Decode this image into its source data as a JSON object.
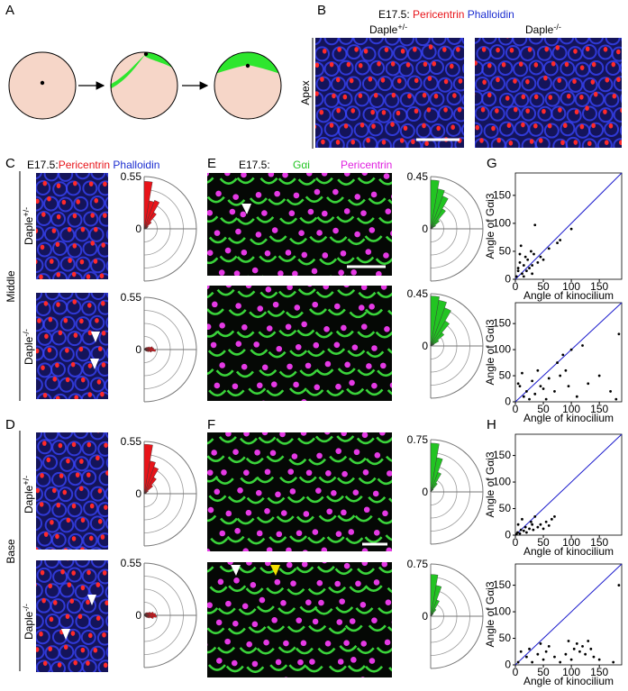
{
  "letters": [
    "A",
    "B",
    "C",
    "D",
    "E",
    "F",
    "G",
    "H"
  ],
  "header_B": {
    "stage": "E17.5:",
    "stain1": "Pericentrin",
    "stain2": "Phalloidin"
  },
  "header_C": {
    "stage": "E17.5:",
    "stain1": "Pericentrin",
    "stain2": "Phalloidin"
  },
  "header_E": {
    "stage": "E17.5:",
    "stain1": "Gαi",
    "stain2": "Pericentrin"
  },
  "columns_B": [
    {
      "gene": "Daple",
      "sup": "+/-"
    },
    {
      "gene": "Daple",
      "sup": "-/-"
    }
  ],
  "rows_CD": [
    {
      "gene": "Daple",
      "sup": "+/-"
    },
    {
      "gene": "Daple",
      "sup": "-/-"
    },
    {
      "gene": "Daple",
      "sup": "+/-"
    },
    {
      "gene": "Daple",
      "sup": "-/-"
    }
  ],
  "regions": [
    "Apex",
    "Middle",
    "Base"
  ],
  "rose_bins": [
    -90,
    -80,
    -70,
    -60,
    -50,
    -40,
    -30,
    -20,
    -10,
    0,
    10,
    20,
    30,
    40,
    50,
    60,
    70,
    80,
    90
  ],
  "rose_plots": [
    {
      "color": "#e8141a",
      "rticks": [
        0,
        0.55
      ],
      "values": [
        0,
        0,
        0,
        0,
        0,
        0,
        0,
        0,
        0,
        0.02,
        0.03,
        0.04,
        0.05,
        0.1,
        0.2,
        0.32,
        0.3,
        0.5
      ]
    },
    {
      "color": "#e8141a",
      "rticks": [
        0,
        0.55
      ],
      "values": [
        0,
        0,
        0,
        0,
        0,
        0.03,
        0.05,
        0.08,
        0.12,
        0.1,
        0.09,
        0.06,
        0.04,
        0.03,
        0.02,
        0,
        0,
        0
      ]
    },
    {
      "color": "#e8141a",
      "rticks": [
        0,
        0.55
      ],
      "values": [
        0,
        0,
        0,
        0,
        0,
        0,
        0,
        0,
        0,
        0,
        0.02,
        0.03,
        0.05,
        0.12,
        0.2,
        0.3,
        0.35,
        0.52
      ]
    },
    {
      "color": "#e8141a",
      "rticks": [
        0,
        0.55
      ],
      "values": [
        0,
        0,
        0,
        0,
        0.02,
        0.04,
        0.06,
        0.1,
        0.13,
        0.12,
        0.1,
        0.07,
        0.05,
        0.04,
        0.03,
        0.02,
        0,
        0
      ]
    },
    {
      "color": "#22c422",
      "rticks": [
        0,
        0.45
      ],
      "values": [
        0,
        0,
        0,
        0,
        0,
        0,
        0,
        0,
        0,
        0,
        0,
        0.02,
        0.05,
        0.1,
        0.2,
        0.3,
        0.35,
        0.42
      ]
    },
    {
      "color": "#22c422",
      "rticks": [
        0,
        0.45
      ],
      "values": [
        0,
        0,
        0,
        0,
        0,
        0,
        0,
        0,
        0,
        0,
        0,
        0.03,
        0.08,
        0.15,
        0.25,
        0.35,
        0.4,
        0.43
      ]
    },
    {
      "color": "#22c422",
      "rticks": [
        0,
        0.75
      ],
      "values": [
        0,
        0,
        0,
        0,
        0,
        0,
        0,
        0,
        0,
        0,
        0,
        0,
        0,
        0.05,
        0.15,
        0.3,
        0.5,
        0.7
      ]
    },
    {
      "color": "#22c422",
      "rticks": [
        0,
        0.75
      ],
      "values": [
        0,
        0,
        0,
        0,
        0,
        0,
        0,
        0,
        0,
        0,
        0,
        0,
        0.02,
        0.05,
        0.12,
        0.25,
        0.45,
        0.6
      ]
    }
  ],
  "scatter_plots": [
    {
      "xlabel": "Angle of kinocilium",
      "ylabel": "Angle of Gαi3",
      "xlim": [
        0,
        190
      ],
      "ylim": [
        0,
        190
      ],
      "xticks": [
        0,
        50,
        100,
        150
      ],
      "yticks": [
        0,
        50,
        100,
        150
      ],
      "x": [
        2,
        5,
        8,
        10,
        12,
        15,
        18,
        20,
        22,
        25,
        28,
        30,
        33,
        35,
        40,
        45,
        50,
        60,
        75,
        80,
        100,
        30,
        8,
        15,
        5
      ],
      "y": [
        5,
        20,
        30,
        60,
        10,
        25,
        40,
        15,
        35,
        20,
        50,
        25,
        45,
        97,
        30,
        40,
        35,
        55,
        65,
        70,
        90,
        10,
        45,
        5,
        15
      ]
    },
    {
      "xlabel": "Angle of kinocilium",
      "ylabel": "Angle of Gαi3",
      "xlim": [
        0,
        190
      ],
      "ylim": [
        0,
        190
      ],
      "xticks": [
        0,
        50,
        100,
        150
      ],
      "yticks": [
        0,
        50,
        100,
        150
      ],
      "x": [
        5,
        8,
        12,
        15,
        20,
        25,
        30,
        35,
        40,
        45,
        50,
        55,
        60,
        70,
        75,
        80,
        85,
        90,
        95,
        100,
        110,
        120,
        130,
        150,
        170,
        180,
        185
      ],
      "y": [
        35,
        30,
        55,
        10,
        20,
        5,
        40,
        15,
        60,
        30,
        25,
        5,
        45,
        20,
        75,
        50,
        90,
        60,
        30,
        100,
        10,
        108,
        35,
        50,
        20,
        5,
        130
      ]
    },
    {
      "xlabel": "Angle of kinocilium",
      "ylabel": "Angle of Gαi3",
      "xlim": [
        0,
        190
      ],
      "ylim": [
        0,
        190
      ],
      "xticks": [
        0,
        50,
        100,
        150
      ],
      "yticks": [
        0,
        50,
        100,
        150
      ],
      "x": [
        2,
        4,
        5,
        8,
        10,
        12,
        15,
        18,
        20,
        25,
        28,
        30,
        32,
        35,
        40,
        45,
        50,
        55,
        60,
        65,
        70
      ],
      "y": [
        2,
        5,
        20,
        3,
        10,
        30,
        8,
        15,
        5,
        12,
        25,
        20,
        10,
        35,
        15,
        20,
        12,
        25,
        18,
        30,
        35
      ]
    },
    {
      "xlabel": "Angle of kinocilium",
      "ylabel": "Angle of Gαi3",
      "xlim": [
        0,
        190
      ],
      "ylim": [
        0,
        190
      ],
      "xticks": [
        0,
        50,
        100,
        150
      ],
      "yticks": [
        0,
        50,
        100,
        150
      ],
      "x": [
        5,
        10,
        20,
        25,
        30,
        40,
        45,
        50,
        55,
        60,
        70,
        80,
        90,
        95,
        100,
        105,
        110,
        115,
        120,
        125,
        130,
        135,
        140,
        150,
        175,
        185
      ],
      "y": [
        5,
        25,
        15,
        30,
        5,
        20,
        40,
        10,
        25,
        35,
        15,
        5,
        20,
        45,
        10,
        30,
        40,
        25,
        35,
        20,
        45,
        30,
        15,
        10,
        5,
        150
      ]
    }
  ]
}
